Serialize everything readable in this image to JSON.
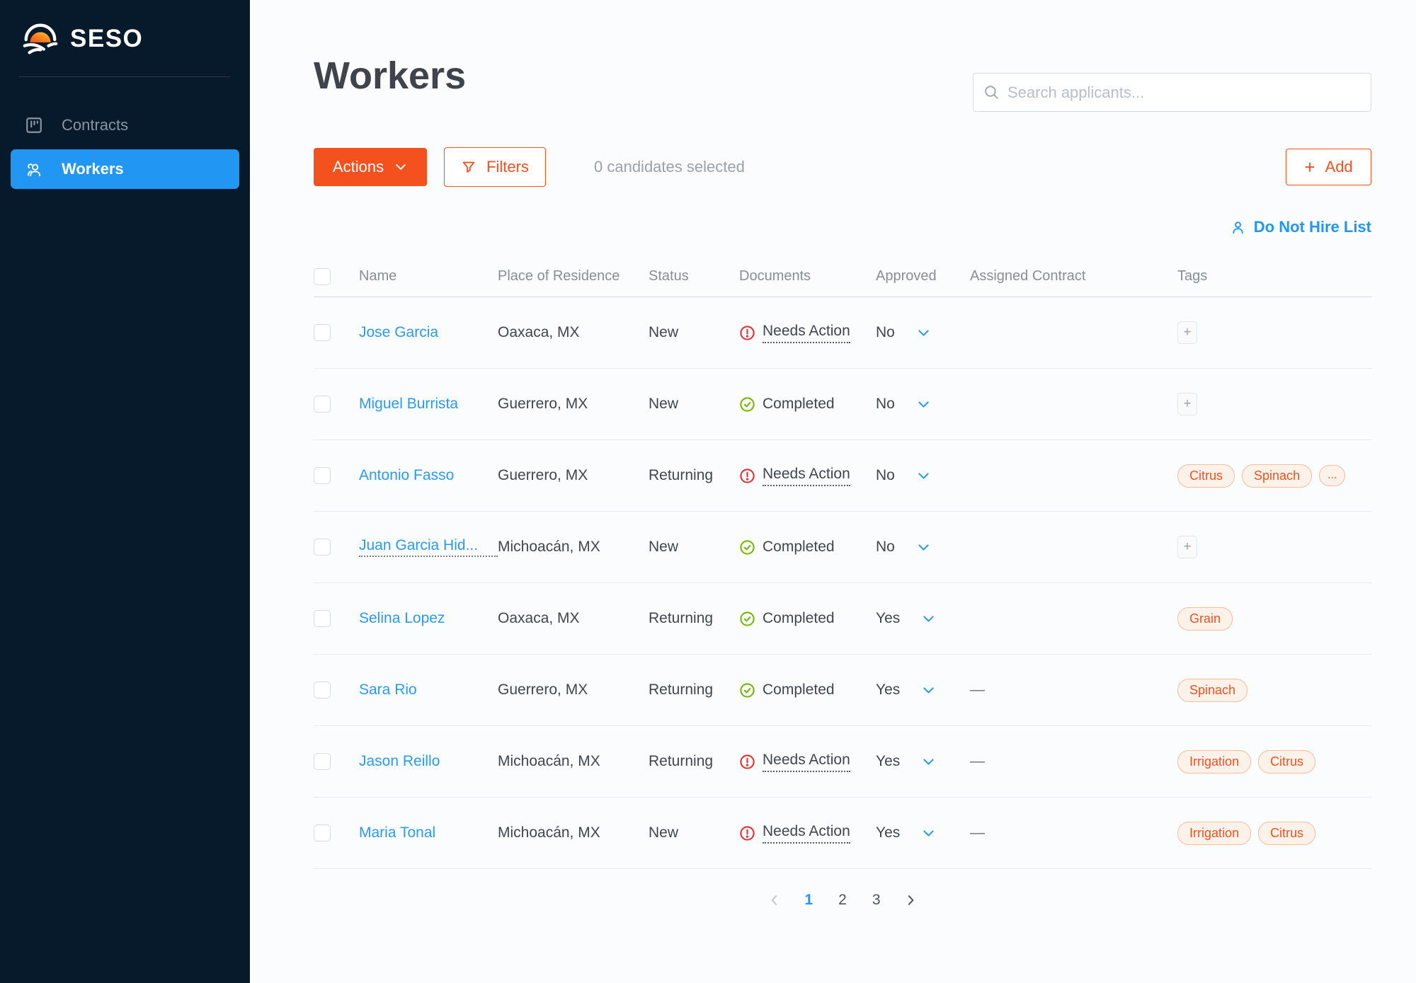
{
  "brand": {
    "name": "SESO"
  },
  "colors": {
    "accent_orange": "#F4511E",
    "accent_blue": "#2196F3",
    "success_green": "#7CB305",
    "error_red": "#E23232",
    "sidebar_bg": "#071A2B"
  },
  "sidebar": {
    "items": [
      {
        "label": "Contracts",
        "active": false
      },
      {
        "label": "Workers",
        "active": true
      }
    ]
  },
  "header": {
    "title": "Workers",
    "search_placeholder": "Search applicants..."
  },
  "toolbar": {
    "actions_label": "Actions",
    "filters_label": "Filters",
    "selected_text": "0 candidates selected",
    "add_label": "Add",
    "add_plus": "+",
    "do_not_hire_label": "Do Not Hire List"
  },
  "table": {
    "columns": [
      "Name",
      "Place of Residence",
      "Status",
      "Documents",
      "Approved",
      "Assigned Contract",
      "Tags"
    ],
    "add_tag_label": "+",
    "more_tag_label": "...",
    "rows": [
      {
        "name": "Jose Garcia",
        "name_truncated": false,
        "residence": "Oaxaca, MX",
        "status": "New",
        "documents": "Needs Action",
        "doc_state": "needs_action",
        "approved": "No",
        "contract": "",
        "tags": [],
        "has_more_tag": false,
        "has_add_tag": true
      },
      {
        "name": "Miguel Burrista",
        "name_truncated": false,
        "residence": "Guerrero, MX",
        "status": "New",
        "documents": "Completed",
        "doc_state": "completed",
        "approved": "No",
        "contract": "",
        "tags": [],
        "has_more_tag": false,
        "has_add_tag": true
      },
      {
        "name": "Antonio Fasso",
        "name_truncated": false,
        "residence": "Guerrero, MX",
        "status": "Returning",
        "documents": "Needs Action",
        "doc_state": "needs_action",
        "approved": "No",
        "contract": "",
        "tags": [
          "Citrus",
          "Spinach"
        ],
        "has_more_tag": true,
        "has_add_tag": false
      },
      {
        "name": "Juan Garcia Hid...",
        "name_truncated": true,
        "residence": "Michoacán, MX",
        "status": "New",
        "documents": "Completed",
        "doc_state": "completed",
        "approved": "No",
        "contract": "",
        "tags": [],
        "has_more_tag": false,
        "has_add_tag": true
      },
      {
        "name": "Selina Lopez",
        "name_truncated": false,
        "residence": "Oaxaca, MX",
        "status": "Returning",
        "documents": "Completed",
        "doc_state": "completed",
        "approved": "Yes",
        "contract": "",
        "tags": [
          "Grain"
        ],
        "has_more_tag": false,
        "has_add_tag": false
      },
      {
        "name": "Sara Rio",
        "name_truncated": false,
        "residence": "Guerrero, MX",
        "status": "Returning",
        "documents": "Completed",
        "doc_state": "completed",
        "approved": "Yes",
        "contract": "—",
        "tags": [
          "Spinach"
        ],
        "has_more_tag": false,
        "has_add_tag": false
      },
      {
        "name": "Jason Reillo",
        "name_truncated": false,
        "residence": "Michoacán, MX",
        "status": "Returning",
        "documents": "Needs Action",
        "doc_state": "needs_action",
        "approved": "Yes",
        "contract": "—",
        "tags": [
          "Irrigation",
          "Citrus"
        ],
        "has_more_tag": false,
        "has_add_tag": false
      },
      {
        "name": "Maria Tonal",
        "name_truncated": false,
        "residence": "Michoacán, MX",
        "status": "New",
        "documents": "Needs Action",
        "doc_state": "needs_action",
        "approved": "Yes",
        "contract": "—",
        "tags": [
          "Irrigation",
          "Citrus"
        ],
        "has_more_tag": false,
        "has_add_tag": false
      }
    ]
  },
  "pagination": {
    "pages": [
      {
        "label": "1",
        "active": true
      },
      {
        "label": "2",
        "active": false
      },
      {
        "label": "3",
        "active": false
      }
    ]
  }
}
